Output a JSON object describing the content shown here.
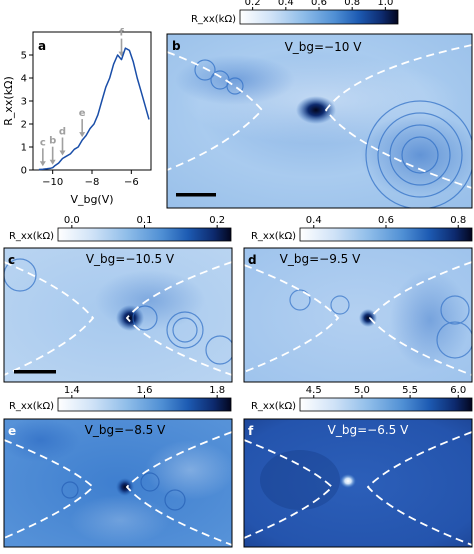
{
  "colors": {
    "cmap": [
      "#ffffff",
      "#cfe2f7",
      "#8fbde9",
      "#4f8fd4",
      "#1d5bb3",
      "#0d2a6e",
      "#03061e"
    ],
    "curve": "#1a4ea8",
    "arrow": "#a0a0a0",
    "dashes": "#ffffff"
  },
  "panel_a": {
    "label": "a",
    "ylabel": "R_xx(kΩ)",
    "xlabel": "V_bg(V)",
    "markers": [
      "c",
      "b",
      "d",
      "e",
      "f"
    ]
  },
  "panels": {
    "b": {
      "label": "b",
      "title": "V_bg=−10 V",
      "cbar_label": "",
      "cbar_ticks": [
        "0.2",
        "0.4",
        "0.6",
        "0.8",
        "1.0"
      ],
      "cbar_prefix": "R_xx(kΩ)"
    },
    "c": {
      "label": "c",
      "title": "V_bg=−10.5 V",
      "cbar_prefix": "R_xx(kΩ)",
      "cbar_ticks": [
        "0.0",
        "0.1",
        "0.2"
      ]
    },
    "d": {
      "label": "d",
      "title": "V_bg=−9.5 V",
      "cbar_prefix": "R_xx(kΩ)",
      "cbar_ticks": [
        "0.4",
        "0.6",
        "0.8"
      ]
    },
    "e": {
      "label": "e",
      "title": "V_bg=−8.5 V",
      "cbar_prefix": "R_xx(kΩ)",
      "cbar_ticks": [
        "1.4",
        "1.6",
        "1.8"
      ]
    },
    "f": {
      "label": "f",
      "title": "V_bg=−6.5 V",
      "cbar_prefix": "R_xx(kΩ)",
      "cbar_ticks": [
        "4.5",
        "5.0",
        "5.5",
        "6.0"
      ]
    }
  },
  "chart_data": {
    "type": "line",
    "xlabel": "V_bg(V)",
    "ylabel": "R_xx(kΩ)",
    "xlim": [
      -11,
      -5
    ],
    "ylim": [
      0,
      6
    ],
    "x_ticks": [
      -10,
      -8,
      -6
    ],
    "y_ticks": [
      0,
      1,
      2,
      3,
      4,
      5
    ],
    "x": [
      -10.7,
      -10.5,
      -10.3,
      -10.1,
      -10.0,
      -9.9,
      -9.7,
      -9.5,
      -9.3,
      -9.1,
      -8.9,
      -8.7,
      -8.5,
      -8.3,
      -8.1,
      -7.9,
      -7.7,
      -7.5,
      -7.3,
      -7.1,
      -6.9,
      -6.7,
      -6.5,
      -6.3,
      -6.1,
      -5.9,
      -5.7,
      -5.5,
      -5.3,
      -5.1
    ],
    "y": [
      0.02,
      0.03,
      0.05,
      0.08,
      0.1,
      0.18,
      0.3,
      0.5,
      0.6,
      0.7,
      0.9,
      1.0,
      1.3,
      1.5,
      1.8,
      2.0,
      2.4,
      3.0,
      3.6,
      4.0,
      4.6,
      5.0,
      4.8,
      5.3,
      5.2,
      4.7,
      4.0,
      3.4,
      2.8,
      2.2
    ],
    "markers": [
      {
        "label": "c",
        "x": -10.5
      },
      {
        "label": "b",
        "x": -10.0
      },
      {
        "label": "d",
        "x": -9.5
      },
      {
        "label": "e",
        "x": -8.5
      },
      {
        "label": "f",
        "x": -6.5
      }
    ]
  }
}
